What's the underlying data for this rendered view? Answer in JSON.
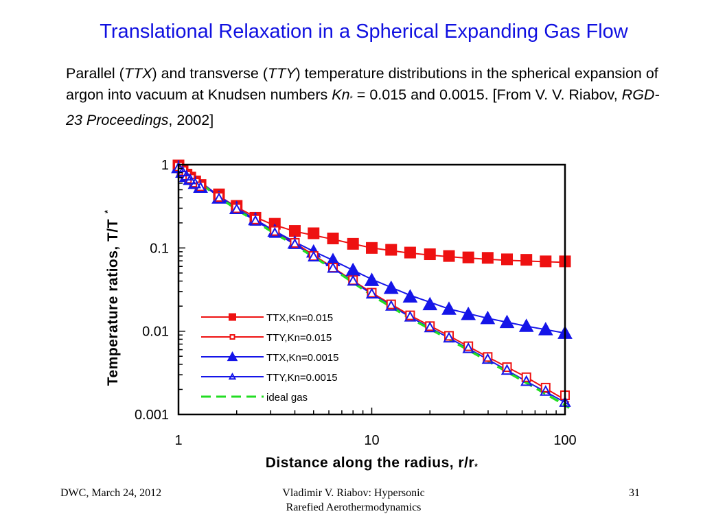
{
  "slide": {
    "title": "Translational Relaxation in a Spherical Expanding Gas Flow",
    "caption": {
      "t1": "Parallel (",
      "ttx": "TTX",
      "t2": ") and transverse (",
      "tty": "TTY",
      "t3": ") temperature distributions in the spherical expansion of argon into vacuum at Knudsen numbers ",
      "kn": "Kn",
      "kn_sub": "*",
      "t4": " = 0.015 and 0.0015. [From V. V. Riabov, ",
      "proc": "RGD-23 Proceedings",
      "t5": ", 2002]"
    },
    "footer": {
      "left": "DWC, March 24, 2012",
      "center_line1": "Vladimir V. Riabov: Hypersonic",
      "center_line2": "Rarefied Aerothermodynamics",
      "right": "31"
    }
  },
  "chart_data": {
    "type": "line",
    "xlabel": "Distance along the radius, r/r",
    "xlabel_sub": "*",
    "ylabel": "Temperature ratios, T/T",
    "ylabel_sub": "*",
    "x_scale": "log",
    "y_scale": "log",
    "xlim": [
      1,
      100
    ],
    "ylim": [
      0.001,
      1
    ],
    "x_ticks": [
      {
        "value": 1,
        "label": "1"
      },
      {
        "value": 10,
        "label": "10"
      },
      {
        "value": 100,
        "label": "100"
      }
    ],
    "y_ticks": [
      {
        "value": 1,
        "label": "1"
      },
      {
        "value": 0.1,
        "label": "0.1"
      },
      {
        "value": 0.01,
        "label": "0.01"
      },
      {
        "value": 0.001,
        "label": "0.001"
      }
    ],
    "grid": false,
    "legend_position": "center-right",
    "series": [
      {
        "name": "TTX,Kn=0.015",
        "color": "#ee1111",
        "marker": "square-filled",
        "dash": "solid",
        "x": [
          1,
          1.05,
          1.1,
          1.15,
          1.22,
          1.3,
          1.62,
          2.0,
          2.5,
          3.15,
          4.0,
          5.0,
          6.3,
          8.0,
          10.0,
          12.6,
          15.8,
          20.0,
          25.1,
          31.6,
          39.8,
          50.1,
          63.1,
          79.4,
          100
        ],
        "y": [
          0.98,
          0.85,
          0.76,
          0.7,
          0.63,
          0.57,
          0.44,
          0.32,
          0.23,
          0.195,
          0.16,
          0.15,
          0.13,
          0.112,
          0.1,
          0.095,
          0.088,
          0.084,
          0.08,
          0.077,
          0.076,
          0.073,
          0.072,
          0.069,
          0.069
        ],
        "curve_x": [
          1,
          1.2,
          1.5,
          2,
          2.5,
          3,
          4,
          5,
          6.3,
          8,
          10,
          15,
          20,
          30,
          50,
          100,
          105
        ],
        "curve_y": [
          1,
          0.66,
          0.47,
          0.31,
          0.235,
          0.195,
          0.158,
          0.142,
          0.127,
          0.112,
          0.1,
          0.088,
          0.082,
          0.076,
          0.071,
          0.067,
          0.067
        ]
      },
      {
        "name": "TTY,Kn=0.015",
        "color": "#ee1111",
        "marker": "square-open",
        "dash": "solid",
        "x": [
          1,
          1.05,
          1.1,
          1.15,
          1.22,
          1.3,
          1.62,
          2.0,
          2.5,
          3.15,
          4.0,
          5.0,
          6.3,
          8.0,
          10.0,
          12.6,
          15.8,
          20.0,
          25.1,
          31.6,
          39.8,
          50.1,
          63.1,
          79.4,
          100
        ],
        "y": [
          0.95,
          0.84,
          0.74,
          0.68,
          0.61,
          0.55,
          0.41,
          0.3,
          0.22,
          0.16,
          0.115,
          0.08,
          0.058,
          0.041,
          0.029,
          0.021,
          0.0155,
          0.0115,
          0.0088,
          0.0066,
          0.0049,
          0.0037,
          0.0028,
          0.0021,
          0.0017
        ],
        "curve_x": [
          1,
          1.5,
          2,
          3,
          4,
          6.3,
          10,
          15.8,
          25.1,
          39.8,
          63.1,
          100,
          105
        ],
        "curve_y": [
          1,
          0.48,
          0.3,
          0.17,
          0.115,
          0.058,
          0.029,
          0.0155,
          0.0088,
          0.0049,
          0.0028,
          0.0015,
          0.0014
        ]
      },
      {
        "name": "TTX,Kn=0.0015",
        "color": "#1515e8",
        "marker": "triangle-filled",
        "dash": "solid",
        "x": [
          1,
          1.05,
          1.1,
          1.15,
          1.22,
          1.3,
          1.62,
          2.0,
          2.5,
          3.15,
          4.0,
          5.0,
          6.3,
          8.0,
          10.0,
          12.6,
          15.8,
          20.0,
          25.1,
          31.6,
          39.8,
          50.1,
          63.1,
          79.4,
          100
        ],
        "y": [
          0.93,
          0.82,
          0.73,
          0.67,
          0.6,
          0.54,
          0.4,
          0.3,
          0.22,
          0.16,
          0.115,
          0.09,
          0.071,
          0.054,
          0.041,
          0.033,
          0.026,
          0.021,
          0.0185,
          0.016,
          0.0143,
          0.0128,
          0.0115,
          0.0105,
          0.0095
        ],
        "curve_x": [
          1,
          1.5,
          2,
          3,
          4,
          5,
          6.3,
          8,
          10,
          15.8,
          25.1,
          39.8,
          63.1,
          100,
          105
        ],
        "curve_y": [
          1,
          0.48,
          0.3,
          0.17,
          0.118,
          0.091,
          0.071,
          0.054,
          0.042,
          0.027,
          0.0185,
          0.0143,
          0.0115,
          0.0095,
          0.0093
        ]
      },
      {
        "name": "TTY,Kn=0.0015",
        "color": "#1515e8",
        "marker": "triangle-open",
        "dash": "solid",
        "x": [
          1,
          1.05,
          1.1,
          1.15,
          1.22,
          1.3,
          1.62,
          2.0,
          2.5,
          3.15,
          4.0,
          5.0,
          6.3,
          8.0,
          10.0,
          12.6,
          15.8,
          20.0,
          25.1,
          31.6,
          39.8,
          50.1,
          63.1,
          79.4,
          100
        ],
        "y": [
          0.92,
          0.82,
          0.73,
          0.66,
          0.59,
          0.53,
          0.39,
          0.29,
          0.21,
          0.15,
          0.11,
          0.078,
          0.057,
          0.04,
          0.028,
          0.02,
          0.0148,
          0.011,
          0.0083,
          0.0062,
          0.0046,
          0.0034,
          0.0025,
          0.0019,
          0.0014
        ],
        "curve_x": [
          1,
          1.5,
          2,
          3,
          4,
          6.3,
          10,
          15.8,
          25.1,
          39.8,
          63.1,
          100,
          105
        ],
        "curve_y": [
          0.98,
          0.47,
          0.29,
          0.165,
          0.11,
          0.057,
          0.028,
          0.0148,
          0.0083,
          0.0046,
          0.0025,
          0.0014,
          0.0013
        ]
      },
      {
        "name": "ideal gas",
        "color": "#22dd22",
        "marker": "none",
        "dash": "dashed",
        "x": [],
        "y": [],
        "curve_x": [
          1,
          1.5,
          2,
          3,
          4,
          6.3,
          10,
          15.8,
          25.1,
          39.8,
          63.1,
          100,
          105
        ],
        "curve_y": [
          0.98,
          0.46,
          0.29,
          0.16,
          0.108,
          0.056,
          0.027,
          0.0143,
          0.008,
          0.0044,
          0.0024,
          0.0013,
          0.0012
        ]
      }
    ]
  }
}
